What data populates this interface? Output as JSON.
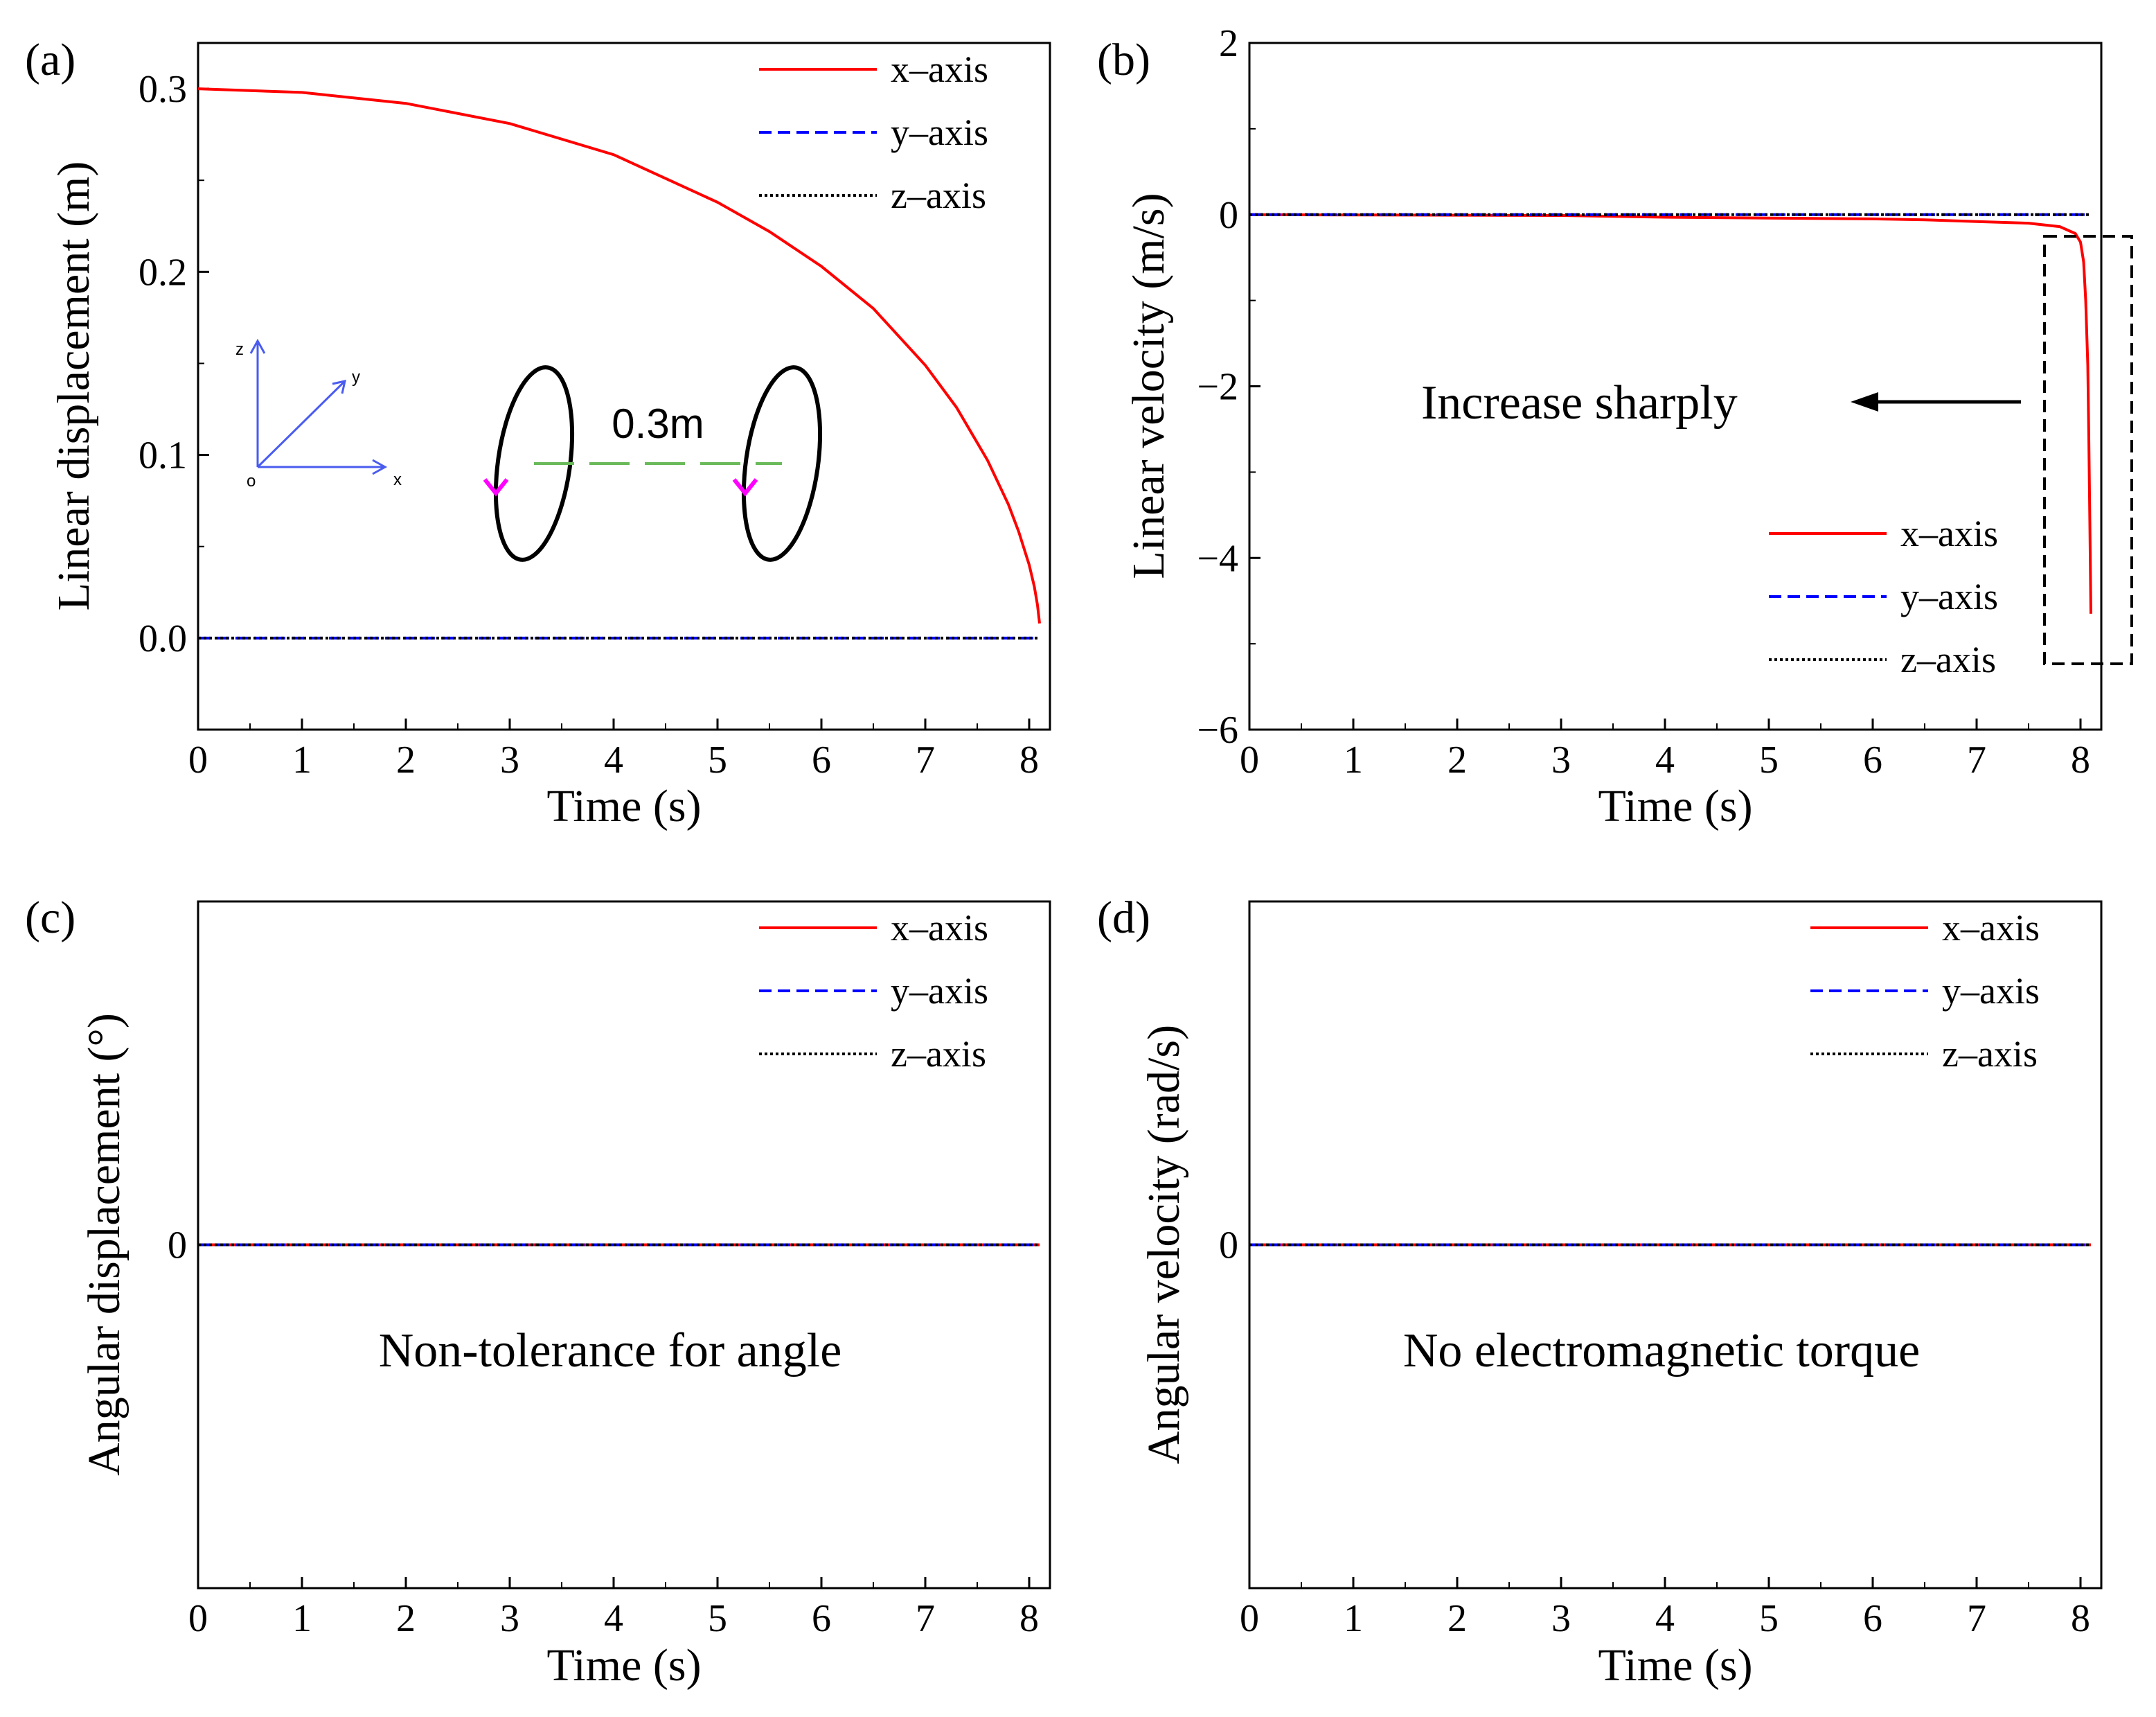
{
  "figure": {
    "colors": {
      "x": "#ff0000",
      "y": "#0000ff",
      "z": "#000000",
      "annotation": "#ff0000",
      "inset_axes": "#4a5cf0",
      "inset_dist": "#6aba5a",
      "inset_arrow": "#ff00ff"
    }
  },
  "chart_data": [
    {
      "panel_label": "(a)",
      "type": "line",
      "xlabel": "Time (s)",
      "ylabel": "Linear displacement (m)",
      "xlim": [
        0,
        8.2
      ],
      "ylim": [
        -0.05,
        0.325
      ],
      "x_ticks": [
        0,
        1,
        2,
        3,
        4,
        5,
        6,
        7,
        8
      ],
      "x_tick_labels": [
        "0",
        "1",
        "2",
        "3",
        "4",
        "5",
        "6",
        "7",
        "8"
      ],
      "y_ticks": [
        0.0,
        0.1,
        0.2,
        0.3
      ],
      "y_tick_labels": [
        "0.0",
        "0.1",
        "0.2",
        "0.3"
      ],
      "legend_position": "top-right",
      "series": [
        {
          "name": "x–axis",
          "style": "solid",
          "color": "#ff0000",
          "x": [
            0,
            1,
            2,
            3,
            4,
            5,
            5.5,
            6,
            6.5,
            7,
            7.3,
            7.6,
            7.8,
            7.9,
            8.0,
            8.05,
            8.08,
            8.1
          ],
          "y": [
            0.3,
            0.298,
            0.292,
            0.281,
            0.264,
            0.238,
            0.222,
            0.203,
            0.18,
            0.149,
            0.126,
            0.097,
            0.073,
            0.058,
            0.04,
            0.028,
            0.018,
            0.008
          ]
        },
        {
          "name": "y–axis",
          "style": "dashed",
          "color": "#0000ff",
          "x": [
            0,
            8.1
          ],
          "y": [
            0,
            0
          ]
        },
        {
          "name": "z–axis",
          "style": "dotted",
          "color": "#000000",
          "x": [
            0,
            8.1
          ],
          "y": [
            0,
            0
          ]
        }
      ],
      "inset": {
        "axis_z": "z",
        "axis_y": "y",
        "axis_x": "x",
        "origin": "o",
        "distance": "0.3m"
      }
    },
    {
      "panel_label": "(b)",
      "type": "line",
      "xlabel": "Time (s)",
      "ylabel": "Linear velocity (m/s)",
      "xlim": [
        0,
        8.2
      ],
      "ylim": [
        -6,
        2
      ],
      "x_ticks": [
        0,
        1,
        2,
        3,
        4,
        5,
        6,
        7,
        8
      ],
      "x_tick_labels": [
        "0",
        "1",
        "2",
        "3",
        "4",
        "5",
        "6",
        "7",
        "8"
      ],
      "y_ticks": [
        -6,
        -4,
        -2,
        0,
        2
      ],
      "y_tick_labels": [
        "−6",
        "−4",
        "−2",
        "0",
        "2"
      ],
      "legend_position": "lower-right",
      "annotation": "Increase sharply",
      "series": [
        {
          "name": "x–axis",
          "style": "solid",
          "color": "#ff0000",
          "x": [
            0,
            3,
            4,
            5,
            6,
            6.5,
            7,
            7.5,
            7.8,
            7.95,
            8.0,
            8.03,
            8.05,
            8.07,
            8.08,
            8.09,
            8.1
          ],
          "y": [
            0,
            -0.01,
            -0.03,
            -0.04,
            -0.05,
            -0.06,
            -0.08,
            -0.1,
            -0.14,
            -0.22,
            -0.32,
            -0.55,
            -1.0,
            -1.75,
            -2.6,
            -3.6,
            -4.65
          ]
        },
        {
          "name": "y–axis",
          "style": "dashed",
          "color": "#0000ff",
          "x": [
            0,
            8.1
          ],
          "y": [
            0,
            0
          ]
        },
        {
          "name": "z–axis",
          "style": "dotted",
          "color": "#000000",
          "x": [
            0,
            8.1
          ],
          "y": [
            0,
            0
          ]
        }
      ]
    },
    {
      "panel_label": "(c)",
      "type": "line",
      "xlabel": "Time (s)",
      "ylabel": "Angular displacement (°)",
      "xlim": [
        0,
        8.2
      ],
      "ylim": [
        -1,
        1
      ],
      "x_ticks": [
        0,
        1,
        2,
        3,
        4,
        5,
        6,
        7,
        8
      ],
      "x_tick_labels": [
        "0",
        "1",
        "2",
        "3",
        "4",
        "5",
        "6",
        "7",
        "8"
      ],
      "y_ticks": [
        0
      ],
      "y_tick_labels": [
        "0"
      ],
      "legend_position": "top-right",
      "annotation": "Non-tolerance for angle",
      "series": [
        {
          "name": "x–axis",
          "style": "solid",
          "color": "#ff0000",
          "x": [
            0,
            8.1
          ],
          "y": [
            0,
            0
          ]
        },
        {
          "name": "y–axis",
          "style": "dashed",
          "color": "#0000ff",
          "x": [
            0,
            8.1
          ],
          "y": [
            0,
            0
          ]
        },
        {
          "name": "z–axis",
          "style": "dotted",
          "color": "#000000",
          "x": [
            0,
            8.1
          ],
          "y": [
            0,
            0
          ]
        }
      ]
    },
    {
      "panel_label": "(d)",
      "type": "line",
      "xlabel": "Time (s)",
      "ylabel": "Angular velocity (rad/s)",
      "xlim": [
        0,
        8.2
      ],
      "ylim": [
        -1,
        1
      ],
      "x_ticks": [
        0,
        1,
        2,
        3,
        4,
        5,
        6,
        7,
        8
      ],
      "x_tick_labels": [
        "0",
        "1",
        "2",
        "3",
        "4",
        "5",
        "6",
        "7",
        "8"
      ],
      "y_ticks": [
        0
      ],
      "y_tick_labels": [
        "0"
      ],
      "legend_position": "top-right",
      "annotation": "No electromagnetic torque",
      "series": [
        {
          "name": "x–axis",
          "style": "solid",
          "color": "#ff0000",
          "x": [
            0,
            8.1
          ],
          "y": [
            0,
            0
          ]
        },
        {
          "name": "y–axis",
          "style": "dashed",
          "color": "#0000ff",
          "x": [
            0,
            8.1
          ],
          "y": [
            0,
            0
          ]
        },
        {
          "name": "z–axis",
          "style": "dotted",
          "color": "#000000",
          "x": [
            0,
            8.1
          ],
          "y": [
            0,
            0
          ]
        }
      ]
    }
  ]
}
